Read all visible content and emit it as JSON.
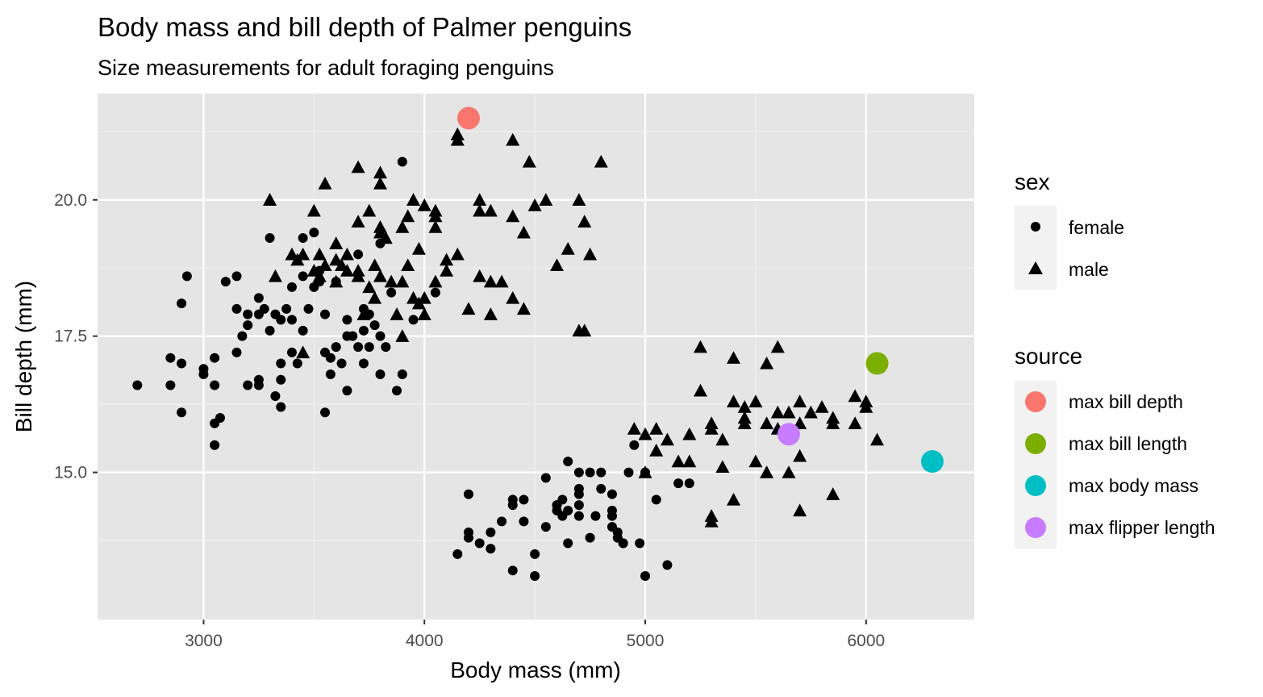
{
  "chart_data": {
    "type": "scatter",
    "title": "Body mass and bill depth of Palmer penguins",
    "subtitle": "Size measurements for adult foraging penguins",
    "xlabel": "Body mass (mm)",
    "ylabel": "Bill depth (mm)",
    "xlim": [
      2520,
      6490
    ],
    "ylim": [
      12.3,
      21.95
    ],
    "x_ticks": [
      3000,
      4000,
      5000,
      6000
    ],
    "x_tick_labels": [
      "3000",
      "4000",
      "5000",
      "6000"
    ],
    "y_ticks": [
      15.0,
      17.5,
      20.0
    ],
    "y_tick_labels": [
      "15.0",
      "17.5",
      "20.0"
    ],
    "grid": true,
    "panel_background": "#e5e5e5",
    "legend_position": "right",
    "legends": {
      "sex": {
        "title": "sex",
        "entries": [
          {
            "label": "female",
            "shape": "circle"
          },
          {
            "label": "male",
            "shape": "triangle"
          }
        ]
      },
      "source": {
        "title": "source",
        "entries": [
          {
            "label": "max bill depth",
            "color": "#F8766D"
          },
          {
            "label": "max bill length",
            "color": "#7CAE00"
          },
          {
            "label": "max body mass",
            "color": "#00BFC4"
          },
          {
            "label": "max flipper length",
            "color": "#C77CFF"
          }
        ]
      }
    },
    "series": [
      {
        "name": "female",
        "shape": "circle",
        "color": "#000000",
        "x": [
          2700,
          2850,
          2850,
          2900,
          2900,
          2900,
          2925,
          3000,
          3000,
          3050,
          3050,
          3050,
          3050,
          3075,
          3100,
          3150,
          3150,
          3150,
          3175,
          3200,
          3200,
          3200,
          3250,
          3250,
          3250,
          3250,
          3275,
          3300,
          3300,
          3325,
          3325,
          3350,
          3350,
          3350,
          3350,
          3375,
          3400,
          3400,
          3400,
          3425,
          3450,
          3450,
          3450,
          3475,
          3500,
          3500,
          3525,
          3525,
          3550,
          3550,
          3550,
          3575,
          3575,
          3600,
          3600,
          3625,
          3650,
          3650,
          3650,
          3675,
          3700,
          3700,
          3725,
          3725,
          3725,
          3750,
          3750,
          3775,
          3800,
          3800,
          3800,
          3825,
          3850,
          3875,
          3900,
          3900,
          3950,
          4050,
          4150,
          4200,
          4200,
          4200,
          4250,
          4300,
          4300,
          4350,
          4400,
          4400,
          4400,
          4450,
          4450,
          4500,
          4550,
          4600,
          4600,
          4625,
          4625,
          4650,
          4650,
          4650,
          4700,
          4700,
          4700,
          4700,
          4750,
          4750,
          4775,
          4800,
          4800,
          4850,
          4850,
          4850,
          4850,
          4875,
          4875,
          4900,
          4900,
          4925,
          4950,
          4975,
          5000,
          5000,
          5050,
          5150,
          5200,
          5100,
          4700,
          4600,
          4550,
          4500
        ],
        "y": [
          16.6,
          17.1,
          16.6,
          18.1,
          17.0,
          16.1,
          18.6,
          16.9,
          16.8,
          17.1,
          16.6,
          15.9,
          15.5,
          16.0,
          18.5,
          18.6,
          18.0,
          17.2,
          17.5,
          17.7,
          16.6,
          17.9,
          18.2,
          17.9,
          16.7,
          16.6,
          18.0,
          19.3,
          17.6,
          17.9,
          16.4,
          17.8,
          17.0,
          16.7,
          16.2,
          18.0,
          18.4,
          17.8,
          17.2,
          17.0,
          19.3,
          18.6,
          17.6,
          18.0,
          19.4,
          18.4,
          18.7,
          18.5,
          17.9,
          17.2,
          16.1,
          17.1,
          16.8,
          18.5,
          17.3,
          17.0,
          17.8,
          17.5,
          16.5,
          17.5,
          19.0,
          17.3,
          18.0,
          17.6,
          17.0,
          17.9,
          17.3,
          17.7,
          19.2,
          17.5,
          16.8,
          17.3,
          18.3,
          16.5,
          20.7,
          16.8,
          17.8,
          18.3,
          13.5,
          14.6,
          13.8,
          13.9,
          13.7,
          13.9,
          13.6,
          14.1,
          14.4,
          14.5,
          13.2,
          14.5,
          14.1,
          13.1,
          14.0,
          14.4,
          14.3,
          14.2,
          14.5,
          15.2,
          14.3,
          13.7,
          15.0,
          14.7,
          14.2,
          14.6,
          15.0,
          13.8,
          14.2,
          14.7,
          15.0,
          14.3,
          14.6,
          14.2,
          14.0,
          13.9,
          13.8,
          13.7,
          13.7,
          15.0,
          15.5,
          13.7,
          15.0,
          13.1,
          14.5,
          14.8,
          14.8,
          13.3,
          14.4,
          14.4,
          14.9,
          13.5
        ]
      },
      {
        "name": "male",
        "shape": "triangle",
        "color": "#000000",
        "x": [
          3300,
          3325,
          3400,
          3425,
          3450,
          3450,
          3500,
          3525,
          3525,
          3550,
          3550,
          3600,
          3600,
          3625,
          3650,
          3650,
          3700,
          3700,
          3700,
          3725,
          3750,
          3750,
          3775,
          3775,
          3800,
          3800,
          3800,
          3800,
          3825,
          3850,
          3875,
          3900,
          3900,
          3900,
          3925,
          3925,
          3950,
          3950,
          3975,
          3975,
          4000,
          4000,
          4000,
          4050,
          4050,
          4050,
          4050,
          4100,
          4100,
          4150,
          4150,
          4150,
          4200,
          4250,
          4250,
          4250,
          4300,
          4300,
          4300,
          4350,
          4400,
          4400,
          4400,
          4450,
          4450,
          4475,
          4500,
          4550,
          4600,
          4650,
          4700,
          4700,
          4725,
          4750,
          4800,
          4950,
          5000,
          5000,
          5050,
          5050,
          5100,
          5150,
          5200,
          5200,
          5250,
          5250,
          5300,
          5300,
          5300,
          5350,
          5350,
          5400,
          5400,
          5400,
          5450,
          5450,
          5450,
          5500,
          5500,
          5550,
          5550,
          5550,
          5600,
          5600,
          5600,
          5650,
          5650,
          5700,
          5700,
          5700,
          5750,
          5800,
          5850,
          5850,
          5950,
          5950,
          6000,
          6000,
          6050,
          5300,
          5700,
          5850,
          4725,
          4150,
          3800,
          3300,
          3500,
          3600,
          3700
        ],
        "y": [
          20.0,
          18.6,
          19.0,
          18.9,
          19.0,
          17.2,
          18.7,
          18.6,
          19.0,
          20.3,
          18.8,
          19.2,
          18.5,
          18.8,
          18.7,
          19.0,
          20.6,
          19.6,
          18.7,
          17.9,
          19.8,
          18.4,
          18.2,
          18.8,
          19.5,
          19.4,
          20.3,
          18.6,
          19.3,
          18.5,
          17.9,
          19.5,
          18.5,
          17.5,
          19.7,
          18.8,
          20.0,
          18.2,
          18.1,
          19.1,
          19.9,
          18.2,
          17.9,
          19.8,
          19.7,
          19.5,
          18.5,
          18.7,
          18.9,
          21.2,
          21.1,
          19.0,
          18.0,
          20.0,
          19.8,
          18.6,
          17.9,
          18.5,
          19.8,
          18.5,
          21.1,
          19.7,
          18.2,
          19.4,
          18.0,
          20.7,
          19.9,
          20.0,
          18.8,
          19.1,
          17.6,
          20.0,
          19.6,
          19.0,
          20.7,
          15.8,
          15.7,
          15.0,
          15.8,
          15.4,
          15.6,
          15.2,
          15.7,
          15.2,
          17.3,
          16.5,
          15.8,
          15.9,
          14.1,
          15.6,
          15.1,
          17.1,
          16.3,
          14.5,
          16.0,
          15.9,
          16.2,
          16.3,
          15.2,
          17.0,
          15.9,
          15.0,
          17.3,
          16.1,
          15.8,
          16.1,
          15.0,
          16.3,
          15.9,
          15.3,
          16.1,
          16.2,
          16.0,
          15.9,
          16.4,
          15.9,
          16.3,
          16.2,
          15.6,
          14.2,
          14.3,
          14.6,
          17.6,
          21.2,
          20.5,
          20.0,
          19.8,
          18.9,
          18.6
        ]
      },
      {
        "name": "max bill depth",
        "shape": "circle",
        "highlight": true,
        "color": "#F8766D",
        "x": [
          4200
        ],
        "y": [
          21.5
        ]
      },
      {
        "name": "max bill length",
        "shape": "circle",
        "highlight": true,
        "color": "#7CAE00",
        "x": [
          6050
        ],
        "y": [
          17.0
        ]
      },
      {
        "name": "max body mass",
        "shape": "circle",
        "highlight": true,
        "color": "#00BFC4",
        "x": [
          6300
        ],
        "y": [
          15.2
        ]
      },
      {
        "name": "max flipper length",
        "shape": "circle",
        "highlight": true,
        "color": "#C77CFF",
        "x": [
          5650
        ],
        "y": [
          15.7
        ]
      }
    ]
  }
}
